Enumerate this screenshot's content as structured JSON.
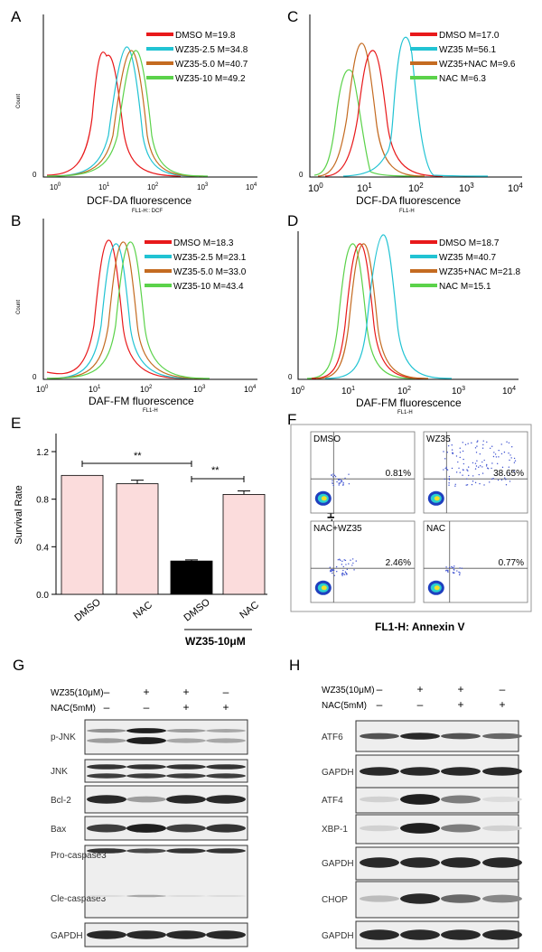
{
  "panels": {
    "A": {
      "letter": "A",
      "xlabel": "DCF-DA fluorescence",
      "xsub": "FL1-H:: DCF",
      "ylabel": "Count",
      "zero": "0",
      "ticks": [
        "10",
        "1",
        "10",
        "2",
        "10",
        "3",
        "10",
        "4"
      ],
      "tick0": [
        "10",
        "0"
      ],
      "legend": [
        {
          "label": "DMSO M=19.8",
          "color": "#e8191b"
        },
        {
          "label": "WZ35-2.5 M=34.8",
          "color": "#21c3d3"
        },
        {
          "label": "WZ35-5.0 M=40.7",
          "color": "#c46b21"
        },
        {
          "label": "WZ35-10 M=49.2",
          "color": "#5bd24a"
        }
      ]
    },
    "B": {
      "letter": "B",
      "xlabel": "DAF-FM fluorescence",
      "xsub": "FL1-H",
      "ylabel": "Count",
      "zero": "0",
      "legend": [
        {
          "label": "DMSO M=18.3",
          "color": "#e8191b"
        },
        {
          "label": "WZ35-2.5 M=23.1",
          "color": "#21c3d3"
        },
        {
          "label": "WZ35-5.0 M=33.0",
          "color": "#c46b21"
        },
        {
          "label": "WZ35-10 M=43.4",
          "color": "#5bd24a"
        }
      ]
    },
    "C": {
      "letter": "C",
      "xlabel": "DCF-DA fluorescence",
      "xsub": "FL1-H",
      "zero": "0",
      "legend": [
        {
          "label": "DMSO M=17.0",
          "color": "#e8191b"
        },
        {
          "label": "WZ35 M=56.1",
          "color": "#21c3d3"
        },
        {
          "label": "WZ35+NAC M=9.6",
          "color": "#c46b21"
        },
        {
          "label": "NAC   M=6.3",
          "color": "#5bd24a"
        }
      ]
    },
    "D": {
      "letter": "D",
      "xlabel": "DAF-FM fluorescence",
      "xsub": "FL1-H",
      "zero": "0",
      "legend": [
        {
          "label": "DMSO M=18.7",
          "color": "#e8191b"
        },
        {
          "label": "WZ35 M=40.7",
          "color": "#21c3d3"
        },
        {
          "label": "WZ35+NAC M=21.8",
          "color": "#c46b21"
        },
        {
          "label": "NAC   M=15.1",
          "color": "#5bd24a"
        }
      ]
    },
    "E": {
      "letter": "E",
      "group_label": "WZ35-10μM",
      "sig1": "**",
      "sig2": "**"
    },
    "F": {
      "letter": "F",
      "ylabel": "FL3-H:PI",
      "xlabel": "FL1-H: Annexin V",
      "quadrants": [
        {
          "name": "DMSO",
          "pct": "0.81%"
        },
        {
          "name": "WZ35",
          "pct": "38.65%"
        },
        {
          "name": "NAC+WZ35",
          "pct": "2.46%"
        },
        {
          "name": "NAC",
          "pct": "0.77%"
        }
      ]
    },
    "G": {
      "letter": "G",
      "treat_rows": [
        {
          "label": "WZ35(10μM)",
          "signs": [
            "–",
            "+",
            "+",
            "–"
          ]
        },
        {
          "label": "NAC(5mM)",
          "signs": [
            "–",
            "–",
            "+",
            "+"
          ]
        }
      ],
      "blots": [
        "p-JNK",
        "JNK",
        "Bcl-2",
        "Bax",
        "Pro-caspase3",
        "Cle-caspase3",
        "GAPDH"
      ]
    },
    "H": {
      "letter": "H",
      "treat_rows": [
        {
          "label": "WZ35(10μM)",
          "signs": [
            "–",
            "+",
            "+",
            "–"
          ]
        },
        {
          "label": "NAC(5mM)",
          "signs": [
            "–",
            "–",
            "+",
            "+"
          ]
        }
      ],
      "blots": [
        "ATF6",
        "GAPDH",
        "ATF4",
        "XBP-1",
        "GAPDH",
        "CHOP",
        "GAPDH"
      ]
    }
  },
  "chart_data": {
    "type": "bar",
    "title": "",
    "xlabel": "",
    "ylabel": "Survival Rate",
    "categories": [
      "DMSO",
      "NAC",
      "DMSO",
      "NAC"
    ],
    "values": [
      1.0,
      0.93,
      0.28,
      0.84
    ],
    "errors": [
      0.0,
      0.03,
      0.01,
      0.03
    ],
    "bar_colors": [
      "#fbdcdc",
      "#fbdcdc",
      "#000000",
      "#fbdcdc"
    ],
    "ylim": [
      0,
      1.2
    ],
    "yticks": [
      "0.0",
      "0.4",
      "0.8",
      "1.2"
    ]
  }
}
